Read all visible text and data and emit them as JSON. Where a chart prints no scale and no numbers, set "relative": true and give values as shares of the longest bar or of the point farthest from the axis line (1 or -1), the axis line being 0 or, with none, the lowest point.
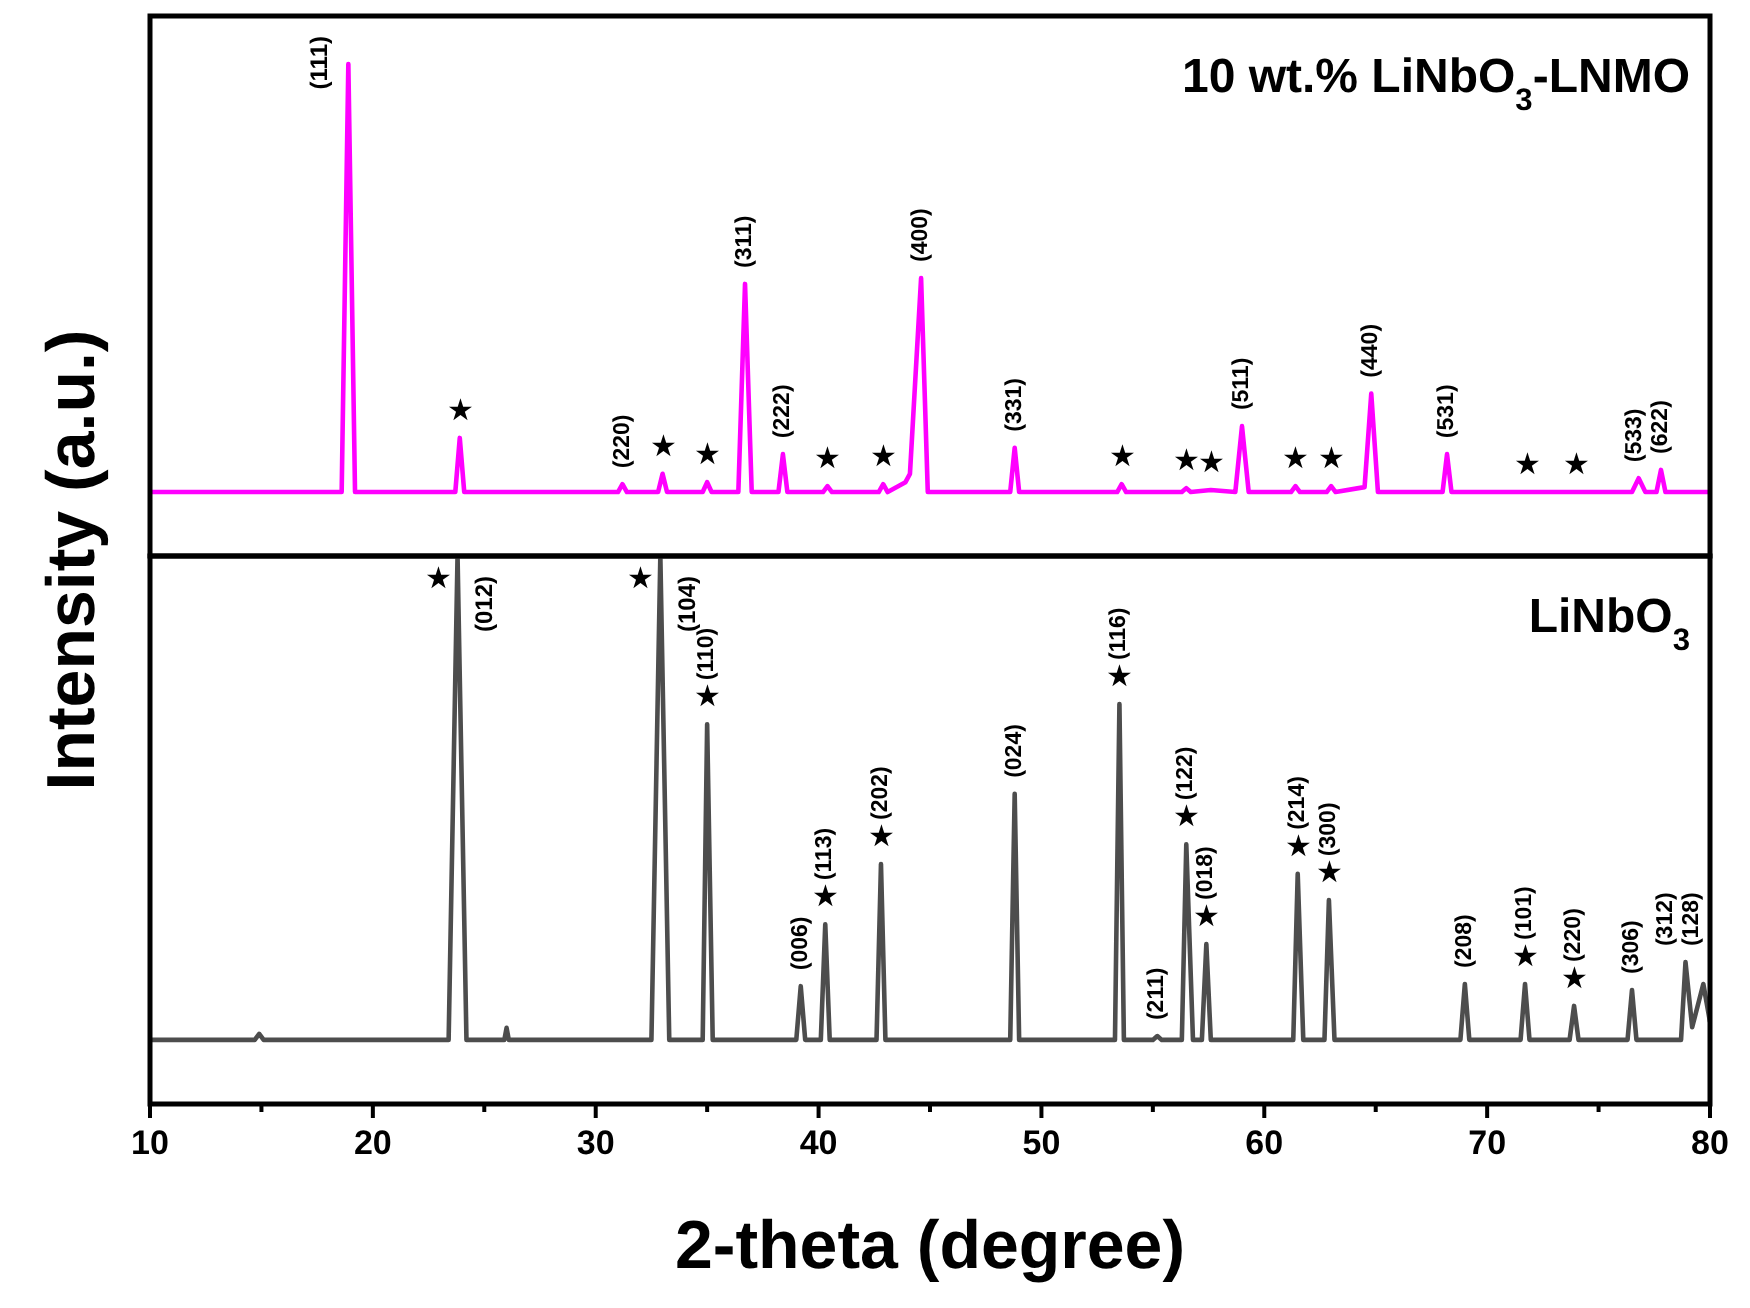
{
  "chart_data": [
    {
      "type": "line",
      "title": "10 wt.% LiNbO$_{3}$-LNMO",
      "ylabel": "Intensity (a.u.)",
      "relative": true,
      "xlim": [
        10,
        80
      ],
      "tick_labels": false,
      "line_style": "solid",
      "series": [
        {
          "color": "#ff00ff",
          "x": [
            10,
            18.6,
            18.9,
            19.2,
            23.7,
            23.9,
            24.1,
            31.0,
            31.2,
            31.4,
            32.8,
            33.0,
            33.2,
            34.8,
            35.0,
            35.2,
            36.4,
            36.7,
            37.0,
            38.2,
            38.4,
            38.6,
            40.2,
            40.4,
            40.6,
            42.7,
            42.9,
            43.1,
            43.9,
            44.1,
            44.6,
            44.9,
            48.6,
            48.8,
            49.0,
            53.4,
            53.6,
            53.8,
            56.3,
            56.5,
            56.7,
            57.6,
            58.7,
            59.0,
            59.3,
            61.2,
            61.4,
            61.6,
            62.8,
            63.0,
            63.2,
            64.5,
            64.8,
            65.1,
            68.0,
            68.2,
            68.4,
            76.5,
            76.8,
            77.1,
            77.6,
            77.8,
            78.0,
            80
          ],
          "values": [
            0.13,
            0.13,
            1.0,
            0.13,
            0.13,
            0.24,
            0.13,
            0.13,
            0.146,
            0.13,
            0.13,
            0.167,
            0.13,
            0.13,
            0.15,
            0.13,
            0.13,
            0.553,
            0.13,
            0.13,
            0.207,
            0.13,
            0.13,
            0.142,
            0.13,
            0.13,
            0.146,
            0.13,
            0.15,
            0.167,
            0.565,
            0.13,
            0.13,
            0.22,
            0.13,
            0.13,
            0.146,
            0.13,
            0.13,
            0.138,
            0.13,
            0.134,
            0.13,
            0.264,
            0.13,
            0.13,
            0.142,
            0.13,
            0.13,
            0.142,
            0.13,
            0.14,
            0.33,
            0.13,
            0.13,
            0.207,
            0.13,
            0.13,
            0.158,
            0.13,
            0.13,
            0.175,
            0.13,
            0.13
          ]
        }
      ],
      "annotations": [
        {
          "text": "(111)",
          "x": 18.9,
          "y": 1.0
        },
        {
          "text": "★",
          "x": 23.9,
          "y": 0.24
        },
        {
          "text": "(220)",
          "x": 31.2,
          "y": 0.146
        },
        {
          "text": "★",
          "x": 33.0,
          "y": 0.167
        },
        {
          "text": "★",
          "x": 35.0,
          "y": 0.15
        },
        {
          "text": "(311)",
          "x": 36.7,
          "y": 0.553
        },
        {
          "text": "(222)",
          "x": 38.4,
          "y": 0.207
        },
        {
          "text": "★",
          "x": 40.4,
          "y": 0.142
        },
        {
          "text": "★",
          "x": 42.9,
          "y": 0.146
        },
        {
          "text": "(400)",
          "x": 44.6,
          "y": 0.565
        },
        {
          "text": "(331)",
          "x": 48.8,
          "y": 0.22
        },
        {
          "text": "★",
          "x": 53.6,
          "y": 0.146
        },
        {
          "text": "★",
          "x": 56.5,
          "y": 0.138
        },
        {
          "text": "★",
          "x": 57.6,
          "y": 0.134
        },
        {
          "text": "(511)",
          "x": 59.0,
          "y": 0.264
        },
        {
          "text": "★",
          "x": 61.4,
          "y": 0.142
        },
        {
          "text": "★",
          "x": 63.0,
          "y": 0.142
        },
        {
          "text": "(440)",
          "x": 64.8,
          "y": 0.33
        },
        {
          "text": "(531)",
          "x": 68.2,
          "y": 0.207
        },
        {
          "text": "★",
          "x": 71.8,
          "y": 0.13
        },
        {
          "text": "★",
          "x": 74.0,
          "y": 0.13
        },
        {
          "text": "(533)",
          "x": 76.8,
          "y": 0.158
        },
        {
          "text": "(622)",
          "x": 77.8,
          "y": 0.175
        }
      ]
    },
    {
      "type": "line",
      "title": "LiNbO$_{3}$",
      "xlabel": "2-theta (degree)",
      "relative": true,
      "xlim": [
        10,
        80
      ],
      "tick_labels": "x",
      "line_style": "solid",
      "xticks": [
        10,
        {
          "value": 15,
          "label": null
        },
        20,
        {
          "value": 25,
          "label": null
        },
        30,
        {
          "value": 35,
          "label": null
        },
        40,
        {
          "value": 45,
          "label": null
        },
        50,
        {
          "value": 55,
          "label": null
        },
        60,
        {
          "value": 65,
          "label": null
        },
        70,
        {
          "value": 75,
          "label": null
        },
        80
      ],
      "series": [
        {
          "color": "#4d4d4d",
          "x": [
            10,
            14.7,
            14.9,
            15.1,
            23.4,
            23.8,
            24.2,
            25.9,
            26.0,
            26.1,
            32.5,
            32.9,
            33.3,
            34.8,
            35.0,
            35.25,
            39.0,
            39.2,
            39.4,
            40.1,
            40.3,
            40.5,
            42.6,
            42.8,
            43.0,
            48.6,
            48.8,
            49.0,
            53.3,
            53.5,
            53.7,
            55.0,
            55.2,
            55.4,
            56.3,
            56.5,
            56.8,
            57.2,
            57.4,
            57.6,
            61.3,
            61.5,
            61.75,
            62.7,
            62.9,
            63.15,
            68.8,
            69.0,
            69.2,
            71.5,
            71.7,
            71.9,
            73.7,
            73.9,
            74.1,
            76.3,
            76.5,
            76.7,
            78.7,
            78.9,
            79.2,
            79.7,
            80
          ],
          "values": [
            0.117,
            0.117,
            0.128,
            0.117,
            0.117,
            1,
            0.117,
            0.117,
            0.139,
            0.117,
            0.117,
            1,
            0.117,
            0.117,
            0.693,
            0.117,
            0.117,
            0.215,
            0.117,
            0.117,
            0.328,
            0.117,
            0.117,
            0.438,
            0.117,
            0.117,
            0.566,
            0.117,
            0.117,
            0.73,
            0.117,
            0.117,
            0.124,
            0.117,
            0.117,
            0.474,
            0.117,
            0.117,
            0.292,
            0.117,
            0.117,
            0.42,
            0.117,
            0.117,
            0.372,
            0.117,
            0.117,
            0.219,
            0.117,
            0.117,
            0.219,
            0.117,
            0.117,
            0.179,
            0.117,
            0.117,
            0.208,
            0.117,
            0.117,
            0.259,
            0.14,
            0.219,
            0.15
          ]
        }
      ],
      "annotations": [
        {
          "text": "★",
          "x": 23.8,
          "y": 1
        },
        {
          "text": "(012)",
          "x": 23.8,
          "y": 1
        },
        {
          "text": "★",
          "x": 32.9,
          "y": 1
        },
        {
          "text": "(104)",
          "x": 32.9,
          "y": 1
        },
        {
          "text": "★",
          "x": 35.0,
          "y": 0.693
        },
        {
          "text": "(110)",
          "x": 35.0,
          "y": 0.693
        },
        {
          "text": "(006)",
          "x": 39.2,
          "y": 0.215
        },
        {
          "text": "★",
          "x": 40.3,
          "y": 0.328
        },
        {
          "text": "(113)",
          "x": 40.3,
          "y": 0.328
        },
        {
          "text": "★",
          "x": 42.8,
          "y": 0.438
        },
        {
          "text": "(202)",
          "x": 42.8,
          "y": 0.438
        },
        {
          "text": "(024)",
          "x": 48.8,
          "y": 0.566
        },
        {
          "text": "★",
          "x": 53.5,
          "y": 0.73
        },
        {
          "text": "(116)",
          "x": 53.5,
          "y": 0.73
        },
        {
          "text": "(211)",
          "x": 55.2,
          "y": 0.124
        },
        {
          "text": "★",
          "x": 56.5,
          "y": 0.474
        },
        {
          "text": "(122)",
          "x": 56.5,
          "y": 0.474
        },
        {
          "text": "★",
          "x": 57.4,
          "y": 0.292
        },
        {
          "text": "(018)",
          "x": 57.4,
          "y": 0.292
        },
        {
          "text": "★",
          "x": 61.5,
          "y": 0.42
        },
        {
          "text": "(214)",
          "x": 61.5,
          "y": 0.42
        },
        {
          "text": "★",
          "x": 62.9,
          "y": 0.372
        },
        {
          "text": "(300)",
          "x": 62.9,
          "y": 0.372
        },
        {
          "text": "(208)",
          "x": 69.0,
          "y": 0.219
        },
        {
          "text": "★",
          "x": 71.7,
          "y": 0.219
        },
        {
          "text": "(101)",
          "x": 71.7,
          "y": 0.219
        },
        {
          "text": "★",
          "x": 73.9,
          "y": 0.179
        },
        {
          "text": "(220)",
          "x": 73.9,
          "y": 0.179
        },
        {
          "text": "(306)",
          "x": 76.5,
          "y": 0.208
        },
        {
          "text": "(312)",
          "x": 78.9,
          "y": 0.259
        },
        {
          "text": "(128)",
          "x": 79.7,
          "y": 0.219
        }
      ]
    }
  ]
}
